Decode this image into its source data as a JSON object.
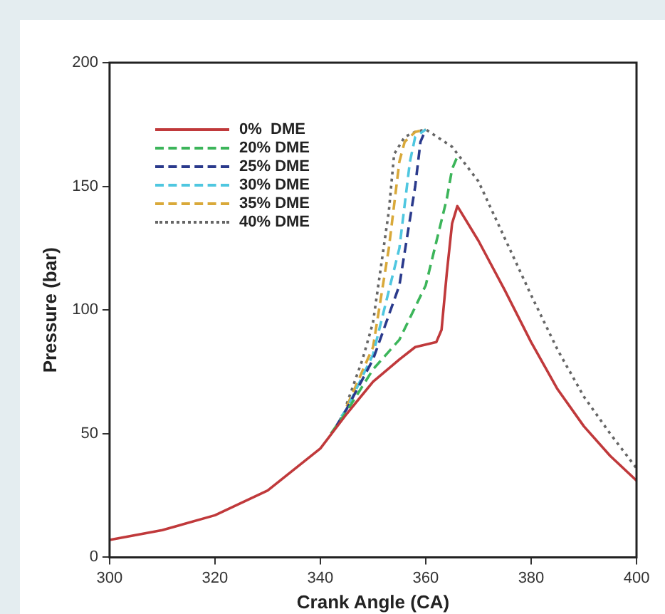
{
  "chart_data": {
    "type": "line",
    "xlabel": "Crank Angle (CA)",
    "ylabel": "Pressure (bar)",
    "xlim": [
      300,
      400
    ],
    "xticks": [
      300,
      320,
      340,
      360,
      380,
      400
    ],
    "ylim": [
      0,
      200
    ],
    "yticks": [
      0,
      50,
      100,
      150,
      200
    ],
    "grid": false,
    "legend": "top left",
    "marker": "none",
    "series": [
      {
        "name": "0%  DME",
        "color": "#c0393b",
        "line_style": "solid",
        "x": [
          300,
          310,
          320,
          330,
          340,
          345,
          350,
          355,
          358,
          360,
          362,
          363,
          364,
          365,
          366,
          370,
          375,
          380,
          385,
          390,
          395,
          400
        ],
        "values": [
          7,
          11,
          17,
          27,
          44,
          58,
          71,
          80,
          85,
          86,
          87,
          92,
          115,
          135,
          142,
          128,
          108,
          87,
          68,
          53,
          41,
          31
        ]
      },
      {
        "name": "20% DME",
        "color": "#3cb55a",
        "line_style": "dashed",
        "x": [
          342,
          345,
          350,
          355,
          360,
          364,
          365,
          366
        ],
        "values": [
          50,
          59,
          76,
          88,
          110,
          145,
          157,
          162
        ]
      },
      {
        "name": "25% DME",
        "color": "#2a3a8c",
        "line_style": "dashed",
        "x": [
          343,
          345,
          350,
          355,
          358,
          359,
          360
        ],
        "values": [
          53,
          60,
          80,
          110,
          150,
          168,
          173
        ]
      },
      {
        "name": "30% DME",
        "color": "#4fc7e0",
        "line_style": "dashed",
        "x": [
          344,
          345,
          350,
          355,
          357,
          358,
          360
        ],
        "values": [
          57,
          60,
          82,
          125,
          160,
          170,
          173
        ]
      },
      {
        "name": "35% DME",
        "color": "#d9a93a",
        "line_style": "dashed",
        "x": [
          345,
          350,
          353,
          355,
          356,
          358,
          360
        ],
        "values": [
          61,
          85,
          125,
          160,
          168,
          172,
          173
        ]
      },
      {
        "name": "40% DME",
        "color": "#666666",
        "line_style": "dotted",
        "x": [
          345,
          348,
          350,
          353,
          354,
          356,
          358,
          360,
          365,
          370,
          375,
          380,
          385,
          390,
          395,
          400
        ],
        "values": [
          62,
          80,
          95,
          140,
          163,
          170,
          172,
          173,
          166,
          152,
          129,
          106,
          84,
          65,
          50,
          36
        ]
      }
    ]
  }
}
